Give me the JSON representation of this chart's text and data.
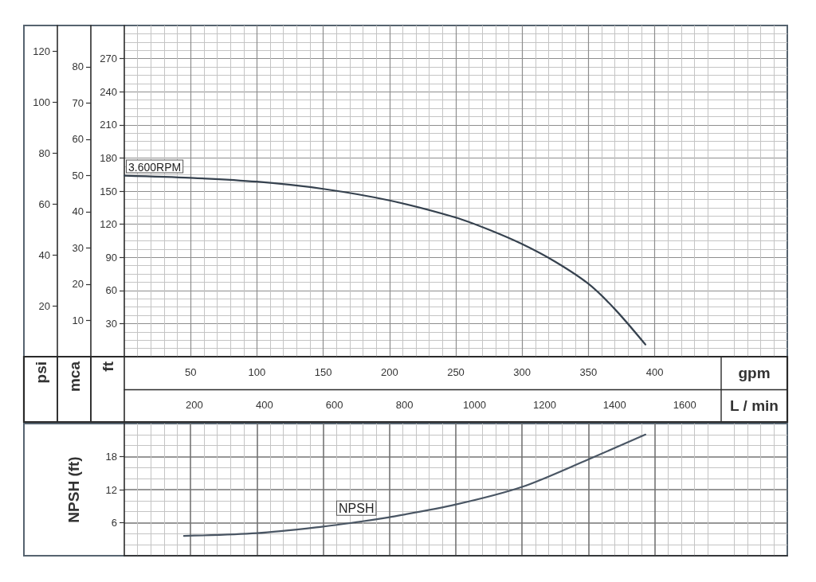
{
  "chart_data": [
    {
      "type": "line",
      "xlabel": "gpm",
      "x2label": "L / min",
      "ylabel": "ft",
      "y2label": "mca",
      "y3label": "psi",
      "x": [
        0,
        50,
        100,
        150,
        200,
        250,
        275,
        300,
        325,
        350,
        370,
        393
      ],
      "series": [
        {
          "name": "3.600RPM",
          "color": "#36424f",
          "values": [
            164,
            162,
            158.5,
            152,
            141.5,
            126,
            115,
            102,
            86,
            66,
            43,
            11
          ]
        }
      ],
      "xlim": [
        0,
        500
      ],
      "xticks": [
        50,
        100,
        150,
        200,
        250,
        300,
        350,
        400
      ],
      "x2lim": [
        0,
        1893
      ],
      "x2ticks": [
        200,
        400,
        600,
        800,
        1000,
        1200,
        1400,
        1600
      ],
      "ylim": [
        0,
        300
      ],
      "yticks": [
        30,
        60,
        90,
        120,
        150,
        180,
        210,
        240,
        270
      ],
      "y2lim": [
        0,
        91.4
      ],
      "y2ticks": [
        10,
        20,
        30,
        40,
        50,
        60,
        70,
        80
      ],
      "y3lim": [
        0,
        130
      ],
      "y3ticks": [
        20,
        40,
        60,
        80,
        100,
        120
      ],
      "grid": true,
      "marker": "none"
    },
    {
      "type": "line",
      "ylabel": "NPSH (ft)",
      "x": [
        45,
        100,
        150,
        175,
        200,
        250,
        300,
        350,
        393
      ],
      "series": [
        {
          "name": "NPSH",
          "color": "#4a5664",
          "values": [
            3.6,
            4.1,
            5.3,
            6.1,
            7.0,
            9.3,
            12.5,
            17.5,
            22
          ]
        }
      ],
      "xlim": [
        0,
        500
      ],
      "ylim": [
        0,
        24
      ],
      "yticks": [
        6,
        12,
        18
      ],
      "tick_labels": "y",
      "grid": true,
      "marker": "none"
    }
  ]
}
